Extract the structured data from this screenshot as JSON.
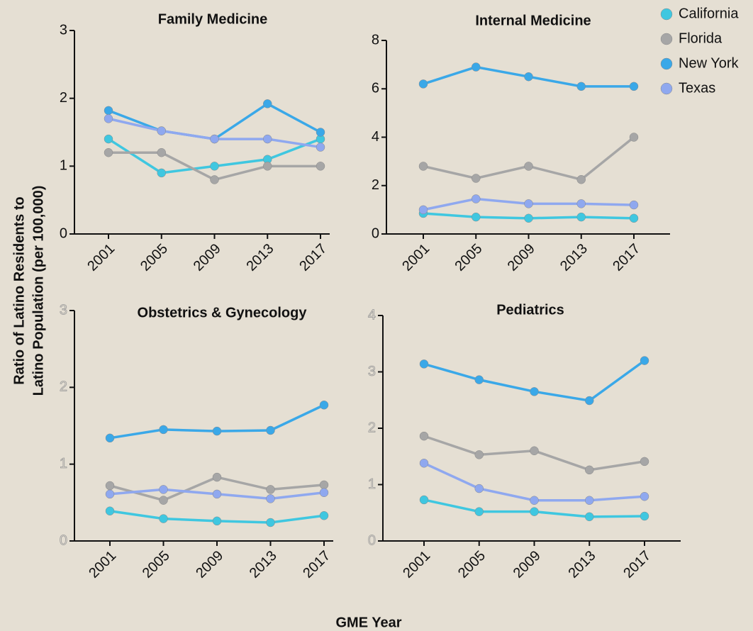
{
  "xlabel": "GME Year",
  "ylabel": [
    "Ratio of Latino Residents to",
    "Latino Population (per 100,000)"
  ],
  "legend": [
    {
      "name": "California",
      "color": "#3fc7e0"
    },
    {
      "name": "Florida",
      "color": "#a6a6a6"
    },
    {
      "name": "New York",
      "color": "#3aa8e8"
    },
    {
      "name": "Texas",
      "color": "#8fa8ef"
    }
  ],
  "chart_data": [
    {
      "type": "line",
      "title": "Family Medicine",
      "categories": [
        "2001",
        "2005",
        "2009",
        "2013",
        "2017"
      ],
      "ylim": [
        0,
        3
      ],
      "yticks": [
        0,
        1,
        2,
        3
      ],
      "series": [
        {
          "values": [
            1.4,
            0.9,
            1.0,
            1.1,
            1.4
          ]
        },
        {
          "values": [
            1.2,
            1.2,
            0.8,
            1.0,
            1.0
          ]
        },
        {
          "values": [
            1.82,
            1.52,
            1.4,
            1.92,
            1.5
          ]
        },
        {
          "values": [
            1.7,
            1.52,
            1.4,
            1.4,
            1.28
          ]
        }
      ]
    },
    {
      "type": "line",
      "title": "Internal Medicine",
      "categories": [
        "2001",
        "2005",
        "2009",
        "2013",
        "2017"
      ],
      "ylim": [
        0,
        8
      ],
      "yticks": [
        0,
        2,
        4,
        6,
        8
      ],
      "series": [
        {
          "values": [
            0.85,
            0.7,
            0.65,
            0.7,
            0.65
          ]
        },
        {
          "values": [
            2.8,
            2.3,
            2.8,
            2.25,
            4.0
          ]
        },
        {
          "values": [
            6.2,
            6.9,
            6.5,
            6.1,
            6.1
          ]
        },
        {
          "values": [
            1.0,
            1.45,
            1.25,
            1.25,
            1.2
          ]
        }
      ]
    },
    {
      "type": "line",
      "title": "Obstetrics & Gynecology",
      "categories": [
        "2001",
        "2005",
        "2009",
        "2013",
        "2017"
      ],
      "ylim": [
        0,
        3
      ],
      "yticks": [
        0,
        1,
        2,
        3
      ],
      "series": [
        {
          "values": [
            0.39,
            0.29,
            0.26,
            0.24,
            0.33
          ]
        },
        {
          "values": [
            0.72,
            0.53,
            0.83,
            0.67,
            0.73
          ]
        },
        {
          "values": [
            1.34,
            1.45,
            1.43,
            1.44,
            1.77
          ]
        },
        {
          "values": [
            0.61,
            0.67,
            0.61,
            0.55,
            0.63
          ]
        }
      ]
    },
    {
      "type": "line",
      "title": "Pediatrics",
      "categories": [
        "2001",
        "2005",
        "2009",
        "2013",
        "2017"
      ],
      "ylim": [
        0,
        4
      ],
      "yticks": [
        0,
        1,
        2,
        3,
        4
      ],
      "series": [
        {
          "values": [
            0.73,
            0.52,
            0.52,
            0.43,
            0.44
          ]
        },
        {
          "values": [
            1.86,
            1.53,
            1.6,
            1.26,
            1.41
          ]
        },
        {
          "values": [
            3.14,
            2.86,
            2.65,
            2.49,
            3.2
          ]
        },
        {
          "values": [
            1.38,
            0.93,
            0.72,
            0.72,
            0.79
          ]
        }
      ]
    }
  ]
}
